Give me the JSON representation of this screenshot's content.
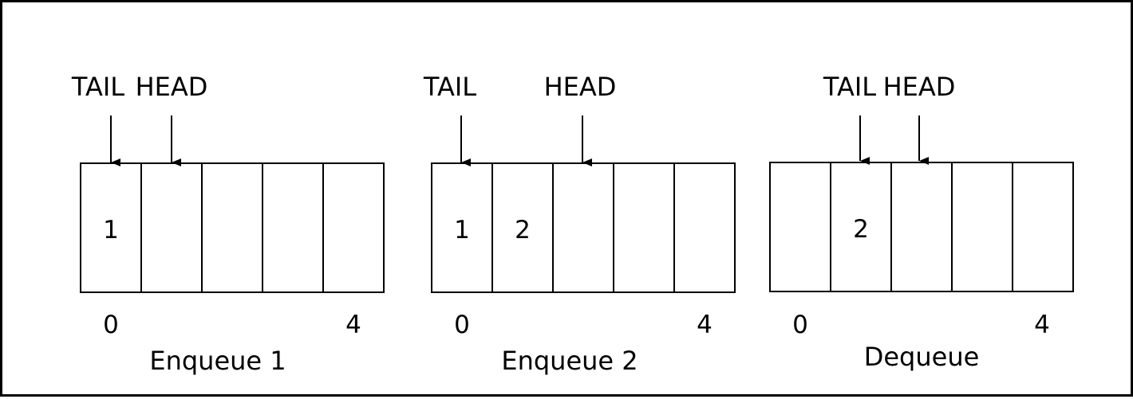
{
  "colors": {
    "stroke": "#000000",
    "background": "#ffffff"
  },
  "panels": [
    {
      "caption": "Enqueue 1",
      "tail_label": "TAIL",
      "head_label": "HEAD",
      "tail_slot": 0,
      "head_slot": 1,
      "cells": [
        "1",
        "",
        "",
        "",
        ""
      ],
      "first_index": "0",
      "last_index": "4"
    },
    {
      "caption": "Enqueue 2",
      "tail_label": "TAIL",
      "head_label": "HEAD",
      "tail_slot": 0,
      "head_slot": 2,
      "cells": [
        "1",
        "2",
        "",
        "",
        ""
      ],
      "first_index": "0",
      "last_index": "4"
    },
    {
      "caption": "Dequeue",
      "tail_label": "TAIL",
      "head_label": "HEAD",
      "tail_slot": 1,
      "head_slot": 2,
      "cells": [
        "",
        "2",
        "",
        "",
        ""
      ],
      "first_index": "0",
      "last_index": "4"
    }
  ]
}
